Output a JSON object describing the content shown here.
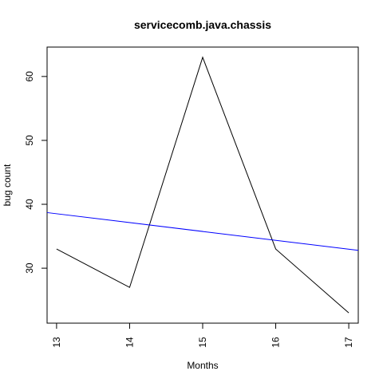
{
  "chart_data": {
    "type": "line",
    "title": "servicecomb.java.chassis",
    "xlabel": "Months",
    "ylabel": "bug count",
    "xlim": [
      12.87,
      17.13
    ],
    "ylim": [
      21.4,
      64.6
    ],
    "xticks": [
      13,
      14,
      15,
      16,
      17
    ],
    "yticks": [
      30,
      40,
      50,
      60
    ],
    "grid": false,
    "series": [
      {
        "x": [
          13,
          14,
          15,
          16,
          17
        ],
        "y": [
          33,
          27,
          63,
          33,
          23
        ],
        "color": "#000000"
      }
    ],
    "trend_line": {
      "x": [
        12.87,
        17.13
      ],
      "y": [
        38.7,
        32.8
      ],
      "color": "#0000ff"
    }
  }
}
